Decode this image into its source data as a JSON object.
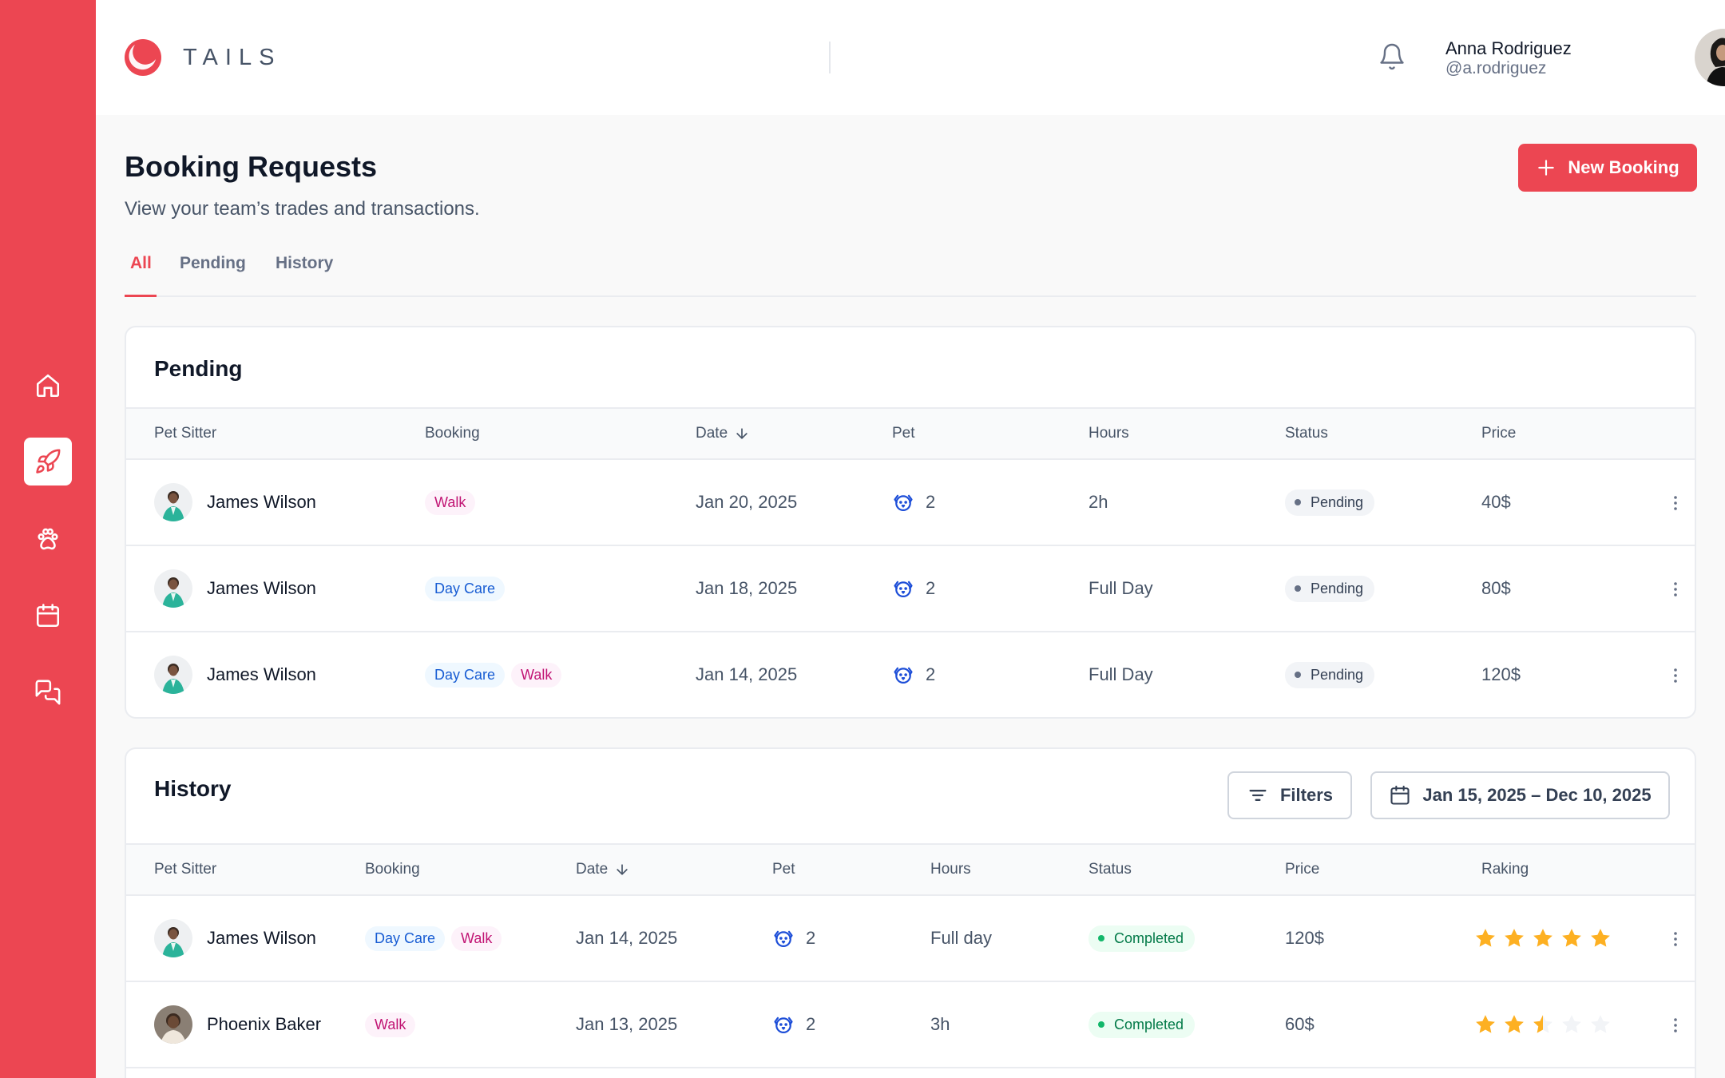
{
  "app": {
    "logo_text": "TAILS",
    "accent": "#ec4652"
  },
  "sidebar": {
    "items": [
      {
        "name": "home-icon",
        "active": false
      },
      {
        "name": "rocket-icon",
        "active": true
      },
      {
        "name": "paw-icon",
        "active": false
      },
      {
        "name": "calendar-icon",
        "active": false
      },
      {
        "name": "messages-icon",
        "active": false
      }
    ]
  },
  "user": {
    "name": "Anna Rodriguez",
    "handle": "@a.rodriguez"
  },
  "header": {
    "title": "Booking Requests",
    "subtitle": "View your team’s trades and transactions.",
    "new_booking": "New Booking"
  },
  "tabs": [
    {
      "label": "All",
      "active": true
    },
    {
      "label": "Pending",
      "active": false
    },
    {
      "label": "History",
      "active": false
    }
  ],
  "pending": {
    "title": "Pending",
    "columns": [
      "Pet Sitter",
      "Booking",
      "Date",
      "Pet",
      "Hours",
      "Status",
      "Price"
    ],
    "rows": [
      {
        "sitter": "James Wilson",
        "tags": [
          "Walk"
        ],
        "date": "Jan 20, 2025",
        "pets": "2",
        "hours": "2h",
        "status": "Pending",
        "price": "40$"
      },
      {
        "sitter": "James Wilson",
        "tags": [
          "Day Care"
        ],
        "date": "Jan 18, 2025",
        "pets": "2",
        "hours": "Full Day",
        "status": "Pending",
        "price": "80$"
      },
      {
        "sitter": "James Wilson",
        "tags": [
          "Day Care",
          "Walk"
        ],
        "date": "Jan 14, 2025",
        "pets": "2",
        "hours": "Full Day",
        "status": "Pending",
        "price": "120$"
      }
    ]
  },
  "history": {
    "title": "History",
    "filters_label": "Filters",
    "date_range": "Jan 15, 2025 – Dec 10, 2025",
    "columns": [
      "Pet Sitter",
      "Booking",
      "Date",
      "Pet",
      "Hours",
      "Status",
      "Price",
      "Raking"
    ],
    "rows": [
      {
        "sitter": "James Wilson",
        "tags": [
          "Day Care",
          "Walk"
        ],
        "date": "Jan 14, 2025",
        "pets": "2",
        "hours": "Full day",
        "status": "Completed",
        "price": "120$",
        "rating": 5
      },
      {
        "sitter": "Phoenix Baker",
        "tags": [
          "Walk"
        ],
        "date": "Jan 13, 2025",
        "pets": "2",
        "hours": "3h",
        "status": "Completed",
        "price": "60$",
        "rating": 2.5
      }
    ]
  }
}
